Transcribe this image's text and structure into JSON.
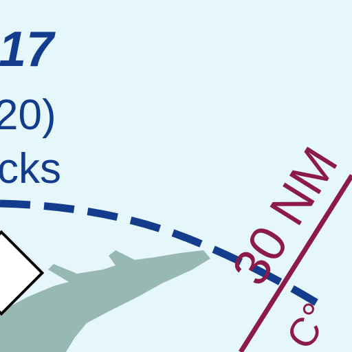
{
  "map": {
    "background_color": "#e6f7fb",
    "water_label": {
      "number": "17",
      "paren_value": "20)",
      "partial_name": "cks"
    },
    "ring": {
      "label": "30 NM",
      "color": "#8c1a4a"
    },
    "partial_label": "C°",
    "boundary_color": "#143c8c",
    "land_color": "#98b8b4"
  }
}
